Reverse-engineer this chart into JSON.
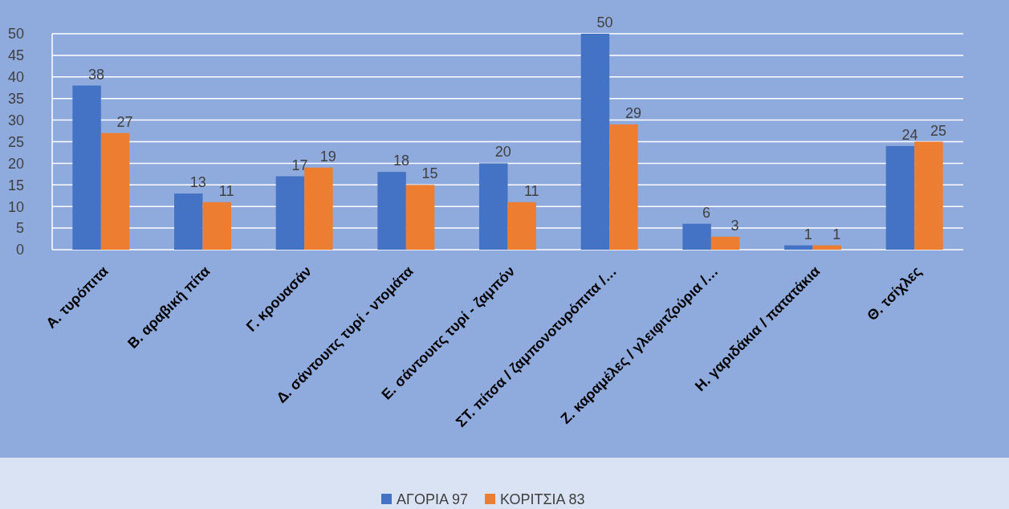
{
  "chart_data": {
    "type": "bar",
    "categories": [
      "Α. τυρόπιτα",
      "Β. αραβική πίτα",
      "Γ. κρουασάν",
      "Δ. σάντουιτς τυρί - ντομάτα",
      "Ε. σάντουιτς τυρί - ζαμπόν",
      "ΣΤ. πίτσα / ζαμπονοτυρόπιτα /…",
      "Ζ. καραμέλες / γλειφιτζούρια /…",
      "Η. γαριδάκια / πατατάκια",
      "Θ. τσίχλες"
    ],
    "series": [
      {
        "name": "ΑΓΟΡΙΑ 97",
        "color": "#4472c4",
        "values": [
          38,
          13,
          17,
          18,
          20,
          50,
          6,
          1,
          24
        ]
      },
      {
        "name": "ΚΟΡΙΤΣΙΑ 83",
        "color": "#ed7d31",
        "values": [
          27,
          11,
          19,
          15,
          11,
          29,
          3,
          1,
          25
        ]
      }
    ],
    "ylim": [
      0,
      50
    ],
    "yticks": [
      0,
      5,
      10,
      15,
      20,
      25,
      30,
      35,
      40,
      45,
      50
    ],
    "grid": "y",
    "data_labels": true,
    "legend": "bottom"
  }
}
